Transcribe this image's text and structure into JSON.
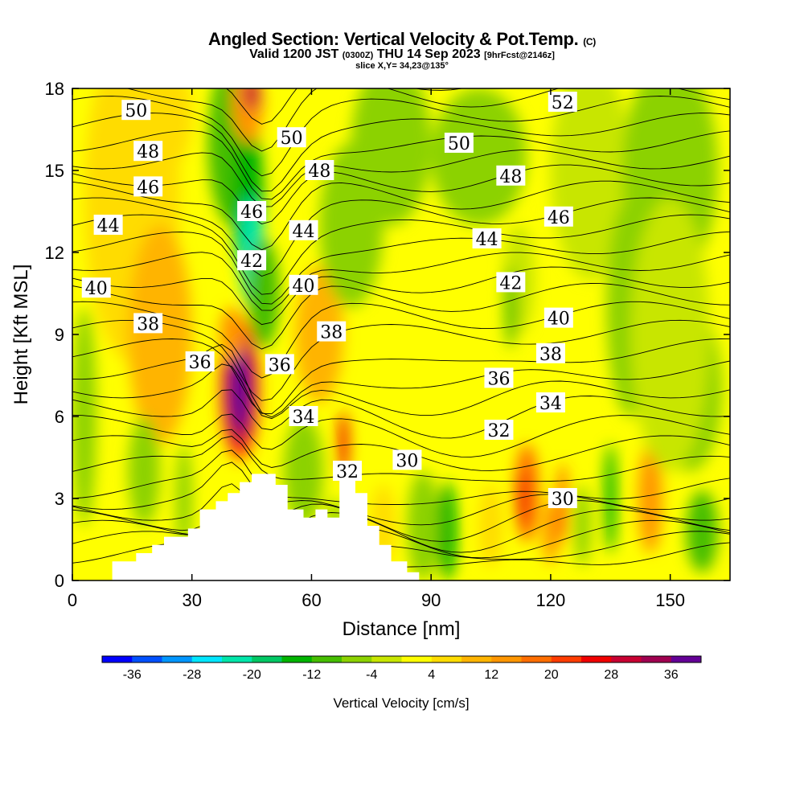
{
  "header": {
    "title": "Angled Section: Vertical Velocity & Pot.Temp.",
    "title_tag": "(C)",
    "valid_prefix": "Valid 1200 JST",
    "valid_utc": "(0300Z)",
    "valid_date": "THU 14 Sep 2023",
    "forecast_tag": "[9hrFcst@2146z]",
    "slice": "slice X,Y= 34,23@135°"
  },
  "chart_data": {
    "type": "heatmap",
    "xlabel": "Distance [nm]",
    "ylabel": "Height [Kft MSL]",
    "xlim": [
      0,
      165
    ],
    "ylim": [
      0,
      18
    ],
    "x_ticks": [
      0,
      30,
      60,
      90,
      120,
      150
    ],
    "y_ticks": [
      0,
      3,
      6,
      9,
      12,
      15,
      18
    ],
    "colorbar": {
      "title": "Vertical Velocity [cm/s]",
      "ticks": [
        "-36",
        "-28",
        "-20",
        "-12",
        "-4",
        "4",
        "12",
        "20",
        "28",
        "36"
      ],
      "levels": [
        -40,
        -36,
        -32,
        -28,
        -24,
        -20,
        -16,
        -12,
        -8,
        -4,
        0,
        4,
        8,
        12,
        16,
        20,
        24,
        28,
        32,
        36,
        40
      ],
      "colors": [
        "#0000ff",
        "#0050ff",
        "#0096ff",
        "#00e6ff",
        "#00e6aa",
        "#00c864",
        "#00b400",
        "#46be00",
        "#8cd200",
        "#c8e600",
        "#ffff00",
        "#ffdc00",
        "#ffb400",
        "#ff9600",
        "#ff6e00",
        "#ff3c00",
        "#f00000",
        "#c80032",
        "#a00050",
        "#640096"
      ]
    },
    "theta_contours": {
      "units": "C",
      "labels": [
        {
          "v": "50",
          "x": 16,
          "y": 17.2
        },
        {
          "v": "50",
          "x": 55,
          "y": 16.2
        },
        {
          "v": "50",
          "x": 97,
          "y": 16.0
        },
        {
          "v": "52",
          "x": 123,
          "y": 17.5
        },
        {
          "v": "48",
          "x": 19,
          "y": 15.7
        },
        {
          "v": "48",
          "x": 62,
          "y": 15.0
        },
        {
          "v": "48",
          "x": 110,
          "y": 14.8
        },
        {
          "v": "46",
          "x": 19,
          "y": 14.4
        },
        {
          "v": "46",
          "x": 45,
          "y": 13.5
        },
        {
          "v": "46",
          "x": 122,
          "y": 13.3
        },
        {
          "v": "44",
          "x": 9,
          "y": 13.0
        },
        {
          "v": "44",
          "x": 58,
          "y": 12.8
        },
        {
          "v": "44",
          "x": 104,
          "y": 12.5
        },
        {
          "v": "42",
          "x": 45,
          "y": 11.7
        },
        {
          "v": "42",
          "x": 110,
          "y": 10.9
        },
        {
          "v": "40",
          "x": 6,
          "y": 10.7
        },
        {
          "v": "40",
          "x": 58,
          "y": 10.8
        },
        {
          "v": "40",
          "x": 122,
          "y": 9.6
        },
        {
          "v": "38",
          "x": 19,
          "y": 9.4
        },
        {
          "v": "38",
          "x": 65,
          "y": 9.1
        },
        {
          "v": "38",
          "x": 120,
          "y": 8.3
        },
        {
          "v": "36",
          "x": 32,
          "y": 8.0
        },
        {
          "v": "36",
          "x": 52,
          "y": 7.9
        },
        {
          "v": "36",
          "x": 107,
          "y": 7.4
        },
        {
          "v": "34",
          "x": 58,
          "y": 6.0
        },
        {
          "v": "34",
          "x": 120,
          "y": 6.5
        },
        {
          "v": "32",
          "x": 69,
          "y": 4.0
        },
        {
          "v": "32",
          "x": 107,
          "y": 5.5
        },
        {
          "v": "30",
          "x": 84,
          "y": 4.4
        },
        {
          "v": "30",
          "x": 123,
          "y": 3.0
        }
      ]
    },
    "terrain_kft": [
      [
        0,
        0
      ],
      [
        10,
        0
      ],
      [
        10,
        0.7
      ],
      [
        16,
        0.7
      ],
      [
        16,
        1.0
      ],
      [
        20,
        1.0
      ],
      [
        20,
        1.3
      ],
      [
        23,
        1.3
      ],
      [
        23,
        1.6
      ],
      [
        29,
        1.6
      ],
      [
        29,
        1.9
      ],
      [
        32,
        1.9
      ],
      [
        32,
        2.6
      ],
      [
        36,
        2.6
      ],
      [
        36,
        2.9
      ],
      [
        39,
        2.9
      ],
      [
        39,
        3.2
      ],
      [
        42,
        3.2
      ],
      [
        42,
        3.6
      ],
      [
        45,
        3.6
      ],
      [
        45,
        3.9
      ],
      [
        51,
        3.9
      ],
      [
        51,
        3.5
      ],
      [
        54,
        3.5
      ],
      [
        54,
        2.6
      ],
      [
        58,
        2.6
      ],
      [
        58,
        2.3
      ],
      [
        61,
        2.3
      ],
      [
        61,
        2.6
      ],
      [
        64,
        2.6
      ],
      [
        64,
        2.3
      ],
      [
        67,
        2.3
      ],
      [
        67,
        3.9
      ],
      [
        71,
        3.9
      ],
      [
        71,
        3.2
      ],
      [
        74,
        3.2
      ],
      [
        74,
        2.0
      ],
      [
        77,
        2.0
      ],
      [
        77,
        1.3
      ],
      [
        80,
        1.3
      ],
      [
        80,
        0.7
      ],
      [
        84,
        0.7
      ],
      [
        84,
        0.3
      ],
      [
        87,
        0.3
      ],
      [
        87,
        0
      ],
      [
        165,
        0
      ]
    ]
  }
}
